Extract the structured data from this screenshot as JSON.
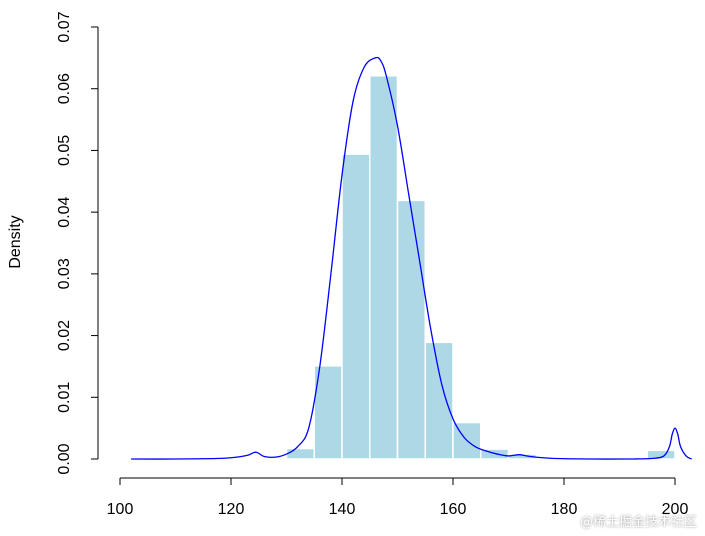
{
  "chart_data": {
    "type": "bar",
    "title": "",
    "xlabel": "",
    "ylabel": "Density",
    "xlim": [
      100,
      200
    ],
    "ylim": [
      0,
      0.07
    ],
    "x_ticks": [
      "100",
      "120",
      "140",
      "160",
      "180",
      "200"
    ],
    "y_ticks": [
      "0.00",
      "0.01",
      "0.02",
      "0.03",
      "0.04",
      "0.05",
      "0.06",
      "0.07"
    ],
    "grid": false,
    "bin_width": 5,
    "bins": [
      {
        "start": 130,
        "end": 135,
        "density": 0.0017
      },
      {
        "start": 135,
        "end": 140,
        "density": 0.0151
      },
      {
        "start": 140,
        "end": 145,
        "density": 0.0494
      },
      {
        "start": 145,
        "end": 150,
        "density": 0.0621
      },
      {
        "start": 150,
        "end": 155,
        "density": 0.0419
      },
      {
        "start": 155,
        "end": 160,
        "density": 0.0189
      },
      {
        "start": 160,
        "end": 165,
        "density": 0.0059
      },
      {
        "start": 165,
        "end": 170,
        "density": 0.0016
      },
      {
        "start": 170,
        "end": 175,
        "density": 0.0008
      },
      {
        "start": 195,
        "end": 200,
        "density": 0.0014
      }
    ],
    "density_curve": {
      "x": [
        102,
        110,
        118,
        121,
        123,
        124.5,
        126,
        128,
        130,
        132,
        134,
        136,
        138,
        140,
        142,
        144,
        146,
        147,
        148,
        150,
        152,
        154,
        156,
        158,
        160,
        162,
        164,
        166,
        168,
        170,
        172,
        174,
        178,
        185,
        192,
        196,
        198,
        199,
        199.5,
        200,
        200.5,
        201,
        202,
        203
      ],
      "y": [
        0,
        0,
        0.0001,
        0.0003,
        0.0006,
        0.0011,
        0.0004,
        0.0003,
        0.0008,
        0.002,
        0.005,
        0.015,
        0.03,
        0.046,
        0.058,
        0.0635,
        0.065,
        0.0645,
        0.062,
        0.054,
        0.043,
        0.032,
        0.021,
        0.012,
        0.0065,
        0.0035,
        0.002,
        0.0013,
        0.0008,
        0.0005,
        0.0007,
        0.0004,
        0.0001,
        0,
        0,
        0.0001,
        0.0005,
        0.002,
        0.004,
        0.005,
        0.004,
        0.002,
        0.0005,
        0
      ]
    },
    "colors": {
      "bar_fill": "#add8e6",
      "bar_stroke": "#ffffff",
      "curve": "#0000ff"
    }
  },
  "watermark": "@稀土掘金技术社区"
}
